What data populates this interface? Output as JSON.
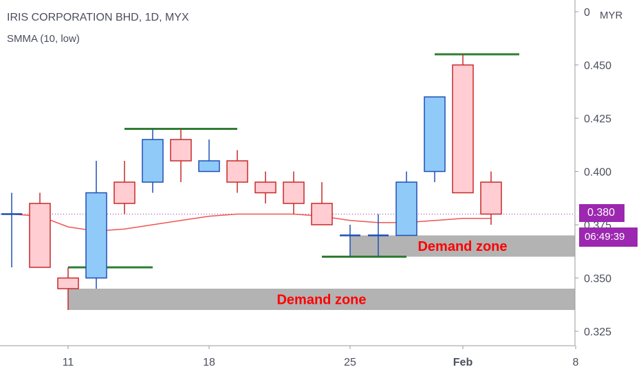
{
  "header": {
    "title": "IRIS CORPORATION BHD, 1D, MYX",
    "indicator": "SMMA (10, low)",
    "currency": "MYR"
  },
  "price_axis": {
    "current_price": "0.380",
    "countdown": "06:49:39"
  },
  "colors": {
    "up_fill": "#90caf9",
    "up_border": "#1e4fb3",
    "down_fill": "#ffcdd2",
    "down_border": "#c62828",
    "smma": "#ef5350",
    "level": "#2e7d32",
    "zone": "#b3b3b3",
    "zone_text": "#ff0000",
    "price_tag": "#9c27b0",
    "price_line": "#9c27b0",
    "axis_text": "#4a4f5c"
  },
  "chart_data": {
    "type": "candlestick",
    "xlabel": "",
    "ylabel": "",
    "ylim": [
      0.32,
      0.475
    ],
    "y_ticks": [
      "0.325",
      "0.350",
      "0.375",
      "0.400",
      "0.425",
      "0.450",
      "0"
    ],
    "x_ticks": [
      {
        "label": "11",
        "slot": 2,
        "bold": false
      },
      {
        "label": "18",
        "slot": 7,
        "bold": false
      },
      {
        "label": "25",
        "slot": 12,
        "bold": false
      },
      {
        "label": "Feb",
        "slot": 16,
        "bold": true
      },
      {
        "label": "8",
        "slot": 20,
        "bold": false
      }
    ],
    "candles": [
      {
        "slot": 0,
        "open": 0.38,
        "high": 0.39,
        "low": 0.355,
        "close": 0.38
      },
      {
        "slot": 1,
        "open": 0.385,
        "high": 0.39,
        "low": 0.355,
        "close": 0.355
      },
      {
        "slot": 2,
        "open": 0.35,
        "high": 0.355,
        "low": 0.335,
        "close": 0.345
      },
      {
        "slot": 3,
        "open": 0.35,
        "high": 0.405,
        "low": 0.345,
        "close": 0.39
      },
      {
        "slot": 4,
        "open": 0.395,
        "high": 0.405,
        "low": 0.38,
        "close": 0.385
      },
      {
        "slot": 5,
        "open": 0.395,
        "high": 0.42,
        "low": 0.39,
        "close": 0.415
      },
      {
        "slot": 6,
        "open": 0.415,
        "high": 0.42,
        "low": 0.395,
        "close": 0.405
      },
      {
        "slot": 7,
        "open": 0.4,
        "high": 0.415,
        "low": 0.4,
        "close": 0.405
      },
      {
        "slot": 8,
        "open": 0.405,
        "high": 0.41,
        "low": 0.39,
        "close": 0.395
      },
      {
        "slot": 9,
        "open": 0.395,
        "high": 0.4,
        "low": 0.385,
        "close": 0.39
      },
      {
        "slot": 10,
        "open": 0.395,
        "high": 0.4,
        "low": 0.38,
        "close": 0.385
      },
      {
        "slot": 11,
        "open": 0.385,
        "high": 0.395,
        "low": 0.375,
        "close": 0.375
      },
      {
        "slot": 12,
        "open": 0.37,
        "high": 0.375,
        "low": 0.36,
        "close": 0.37
      },
      {
        "slot": 13,
        "open": 0.37,
        "high": 0.38,
        "low": 0.36,
        "close": 0.37
      },
      {
        "slot": 14,
        "open": 0.37,
        "high": 0.4,
        "low": 0.37,
        "close": 0.395
      },
      {
        "slot": 15,
        "open": 0.4,
        "high": 0.435,
        "low": 0.395,
        "close": 0.435
      },
      {
        "slot": 16,
        "open": 0.45,
        "high": 0.455,
        "low": 0.39,
        "close": 0.39
      },
      {
        "slot": 17,
        "open": 0.395,
        "high": 0.4,
        "low": 0.375,
        "close": 0.38
      }
    ],
    "smma_series": {
      "slots": [
        0,
        1,
        2,
        3,
        4,
        5,
        6,
        7,
        8,
        9,
        10,
        11,
        12,
        13,
        14,
        15,
        16,
        17
      ],
      "values": [
        0.38,
        0.379,
        0.374,
        0.372,
        0.373,
        0.375,
        0.377,
        0.379,
        0.38,
        0.38,
        0.38,
        0.379,
        0.377,
        0.376,
        0.376,
        0.377,
        0.378,
        0.378
      ]
    },
    "levels": [
      {
        "price": 0.355,
        "from_slot": 2,
        "to_slot": 5
      },
      {
        "price": 0.42,
        "from_slot": 4,
        "to_slot": 8
      },
      {
        "price": 0.36,
        "from_slot": 11,
        "to_slot": 14
      },
      {
        "price": 0.455,
        "from_slot": 15,
        "to_slot": 18
      }
    ],
    "zones": [
      {
        "top": 0.345,
        "bottom": 0.335,
        "from_slot": 2,
        "label": "Demand zone"
      },
      {
        "top": 0.37,
        "bottom": 0.36,
        "from_slot": 12,
        "label": "Demand zone"
      }
    ],
    "current_price": 0.38
  }
}
